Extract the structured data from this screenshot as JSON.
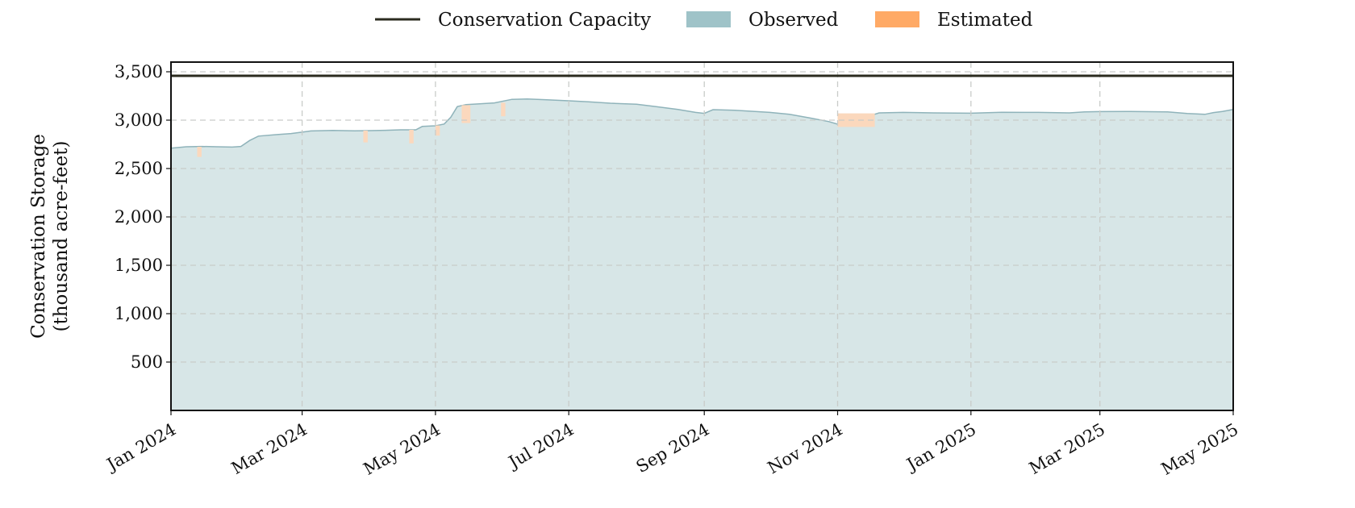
{
  "chart_data": {
    "type": "area",
    "title": "",
    "xlabel": "",
    "ylabel": [
      "Conservation Storage",
      "(thousand acre-feet)"
    ],
    "xlim": [
      "2024-01-01",
      "2025-05-01"
    ],
    "ylim": [
      0,
      3600
    ],
    "grid": true,
    "legend": {
      "placement": "top-center",
      "entries": [
        {
          "key": "capacity",
          "label": "Conservation Capacity"
        },
        {
          "key": "observed",
          "label": "Observed"
        },
        {
          "key": "estimated",
          "label": "Estimated"
        }
      ]
    },
    "colors": {
      "capacity": "#2b2b1f",
      "observed_fill": "#d7e6e7",
      "observed_line": "#8fb3ba",
      "observed_legend": "#9fc3c8",
      "estimated": "#ffaa66",
      "estimated_fill": "#fbd8bd",
      "grid": "#c9ccc9"
    },
    "x_ticks": [
      {
        "date": "2024-01-01",
        "label": "Jan 2024"
      },
      {
        "date": "2024-03-01",
        "label": "Mar 2024"
      },
      {
        "date": "2024-05-01",
        "label": "May 2024"
      },
      {
        "date": "2024-07-01",
        "label": "Jul 2024"
      },
      {
        "date": "2024-09-01",
        "label": "Sep 2024"
      },
      {
        "date": "2024-11-01",
        "label": "Nov 2024"
      },
      {
        "date": "2025-01-01",
        "label": "Jan 2025"
      },
      {
        "date": "2025-03-01",
        "label": "Mar 2025"
      },
      {
        "date": "2025-05-01",
        "label": "May 2025"
      }
    ],
    "y_ticks": [
      {
        "value": 500,
        "label": "500"
      },
      {
        "value": 1000,
        "label": "1,000"
      },
      {
        "value": 1500,
        "label": "1,500"
      },
      {
        "value": 2000,
        "label": "2,000"
      },
      {
        "value": 2500,
        "label": "2,500"
      },
      {
        "value": 3000,
        "label": "3,000"
      },
      {
        "value": 3500,
        "label": "3,500"
      }
    ],
    "capacity": 3458,
    "observed": [
      [
        "2024-01-01",
        2710
      ],
      [
        "2024-01-08",
        2725
      ],
      [
        "2024-01-15",
        2728
      ],
      [
        "2024-01-22",
        2725
      ],
      [
        "2024-01-29",
        2722
      ],
      [
        "2024-02-02",
        2728
      ],
      [
        "2024-02-06",
        2790
      ],
      [
        "2024-02-10",
        2835
      ],
      [
        "2024-02-18",
        2850
      ],
      [
        "2024-02-25",
        2862
      ],
      [
        "2024-03-05",
        2888
      ],
      [
        "2024-03-15",
        2893
      ],
      [
        "2024-03-25",
        2890
      ],
      [
        "2024-04-01",
        2892
      ],
      [
        "2024-04-08",
        2895
      ],
      [
        "2024-04-15",
        2900
      ],
      [
        "2024-04-22",
        2900
      ],
      [
        "2024-04-25",
        2935
      ],
      [
        "2024-05-01",
        2942
      ],
      [
        "2024-05-05",
        2960
      ],
      [
        "2024-05-08",
        3030
      ],
      [
        "2024-05-11",
        3140
      ],
      [
        "2024-05-15",
        3160
      ],
      [
        "2024-05-22",
        3170
      ],
      [
        "2024-05-28",
        3178
      ],
      [
        "2024-06-05",
        3215
      ],
      [
        "2024-06-12",
        3218
      ],
      [
        "2024-06-20",
        3212
      ],
      [
        "2024-07-01",
        3200
      ],
      [
        "2024-07-10",
        3190
      ],
      [
        "2024-07-20",
        3175
      ],
      [
        "2024-08-01",
        3165
      ],
      [
        "2024-08-10",
        3140
      ],
      [
        "2024-08-20",
        3110
      ],
      [
        "2024-08-28",
        3080
      ],
      [
        "2024-09-01",
        3070
      ],
      [
        "2024-09-05",
        3108
      ],
      [
        "2024-09-15",
        3102
      ],
      [
        "2024-09-25",
        3088
      ],
      [
        "2024-10-01",
        3080
      ],
      [
        "2024-10-10",
        3060
      ],
      [
        "2024-10-20",
        3020
      ],
      [
        "2024-10-28",
        2985
      ],
      [
        "2024-11-01",
        2958
      ],
      [
        "2024-11-10",
        2950
      ],
      [
        "2024-11-15",
        3040
      ],
      [
        "2024-11-20",
        3075
      ],
      [
        "2024-12-01",
        3080
      ],
      [
        "2024-12-15",
        3075
      ],
      [
        "2025-01-01",
        3072
      ],
      [
        "2025-01-15",
        3082
      ],
      [
        "2025-02-01",
        3080
      ],
      [
        "2025-02-15",
        3075
      ],
      [
        "2025-02-22",
        3085
      ],
      [
        "2025-03-01",
        3088
      ],
      [
        "2025-03-15",
        3090
      ],
      [
        "2025-04-01",
        3085
      ],
      [
        "2025-04-10",
        3068
      ],
      [
        "2025-04-18",
        3060
      ],
      [
        "2025-04-22",
        3078
      ],
      [
        "2025-04-26",
        3090
      ],
      [
        "2025-05-01",
        3110
      ]
    ],
    "estimated": [
      {
        "start": "2024-01-13",
        "end": "2024-01-15",
        "top": 2725,
        "bottom": 2620
      },
      {
        "start": "2024-03-29",
        "end": "2024-03-31",
        "top": 2892,
        "bottom": 2770
      },
      {
        "start": "2024-04-19",
        "end": "2024-04-21",
        "top": 2900,
        "bottom": 2760
      },
      {
        "start": "2024-05-01",
        "end": "2024-05-03",
        "top": 2945,
        "bottom": 2840
      },
      {
        "start": "2024-05-13",
        "end": "2024-05-17",
        "top": 3155,
        "bottom": 2970
      },
      {
        "start": "2024-05-31",
        "end": "2024-06-02",
        "top": 3180,
        "bottom": 3040
      },
      {
        "start": "2024-11-01",
        "end": "2024-11-18",
        "top": 3070,
        "bottom": 2930
      }
    ]
  }
}
